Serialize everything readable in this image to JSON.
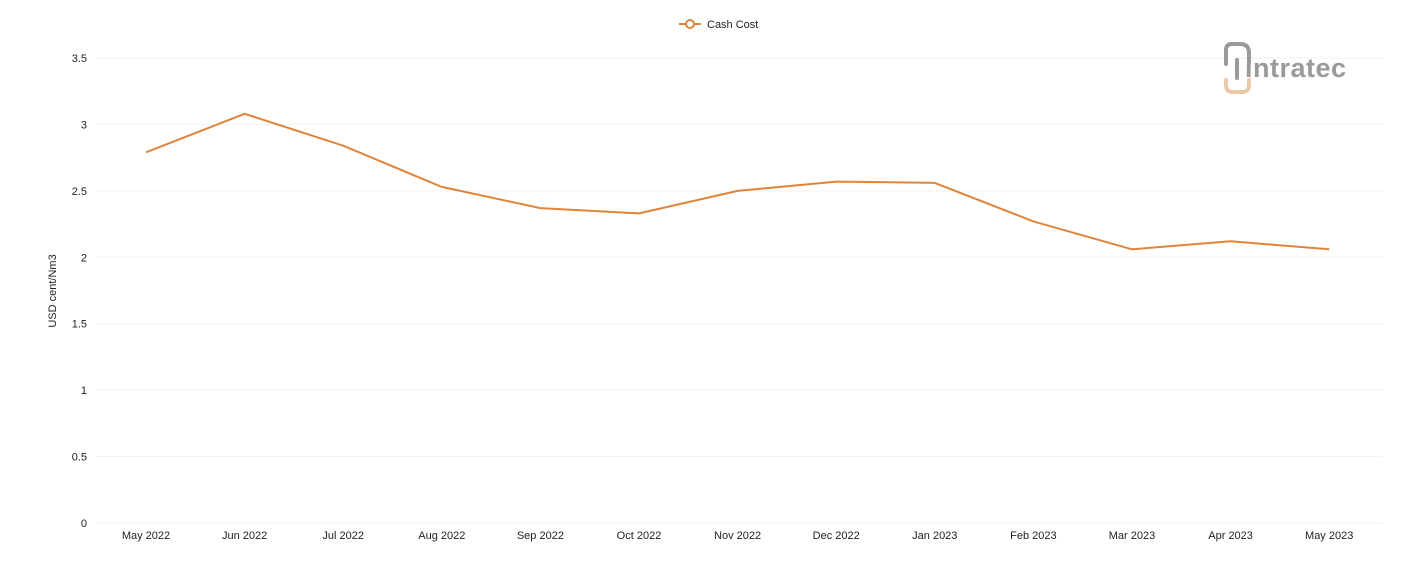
{
  "chart_data": {
    "type": "line",
    "categories": [
      "May 2022",
      "Jun 2022",
      "Jul 2022",
      "Aug 2022",
      "Sep 2022",
      "Oct 2022",
      "Nov 2022",
      "Dec 2022",
      "Jan 2023",
      "Feb 2023",
      "Mar 2023",
      "Apr 2023",
      "May 2023"
    ],
    "series": [
      {
        "name": "Cash Cost",
        "color": "#e0843a",
        "values": [
          2.79,
          3.08,
          2.84,
          2.53,
          2.37,
          2.33,
          2.5,
          2.57,
          2.56,
          2.27,
          2.06,
          2.12,
          2.06
        ]
      }
    ],
    "ylabel": "USD cent/Nm3",
    "ylim": [
      0,
      3.5
    ],
    "yticks": [
      "0",
      "0.5",
      "1",
      "1.5",
      "2",
      "2.5",
      "3",
      "3.5"
    ],
    "grid": true,
    "legend_position": "top-center"
  },
  "logo": {
    "text": "intratec",
    "accent_color": "#e9c9a8",
    "text_color": "#9a9a9a"
  }
}
